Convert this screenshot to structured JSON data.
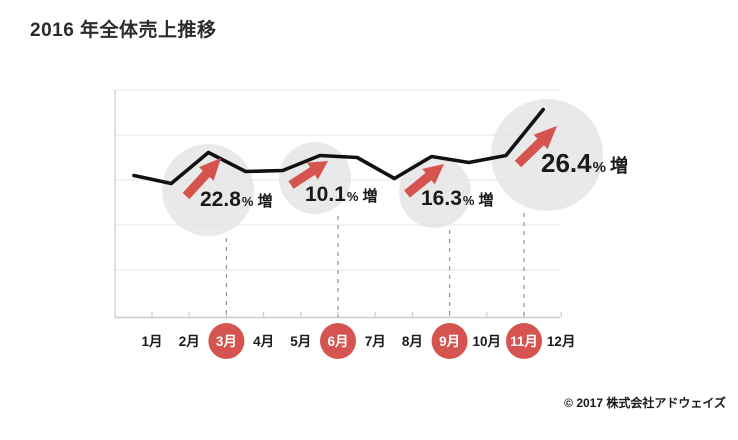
{
  "header": {
    "title": "2016 年全体売上推移"
  },
  "footer": {
    "copyright": "© 2017 株式会社アドウェイズ"
  },
  "chart_data": {
    "type": "line",
    "title": "2016 年全体売上推移",
    "xlabel": "",
    "ylabel": "",
    "y_axis_visible": false,
    "value_units": "relative sales level (no numeric y-axis shown)",
    "grid": "horizontal",
    "legend": "none",
    "categories": [
      "1月",
      "2月",
      "3月",
      "4月",
      "5月",
      "6月",
      "7月",
      "8月",
      "9月",
      "10月",
      "11月",
      "12月"
    ],
    "series": [
      {
        "name": "全体売上",
        "values": [
          142,
          134,
          165,
          146,
          147,
          162,
          160,
          139,
          161,
          155,
          162,
          208
        ]
      }
    ],
    "highlighted_month_indices": [
      3,
      6,
      9,
      11
    ],
    "annotations": [
      {
        "month": "3月",
        "month_index": 3,
        "value": "22.8",
        "unit": "%",
        "suffix": "増"
      },
      {
        "month": "6月",
        "month_index": 6,
        "value": "10.1",
        "unit": "%",
        "suffix": "増"
      },
      {
        "month": "9月",
        "month_index": 9,
        "value": "16.3",
        "unit": "%",
        "suffix": "増"
      },
      {
        "month": "11月",
        "month_index": 11,
        "value": "26.4",
        "unit": "%",
        "suffix": "増"
      }
    ],
    "colors": {
      "line": "#111111",
      "accent_red": "#d5544f",
      "circle_gray": "#e9e9e9",
      "grid": "#e4e4e4",
      "axis": "#cccccc",
      "dashed": "#9b9b9b",
      "text": "#1a1a1a",
      "badge_text": "#ffffff"
    }
  }
}
